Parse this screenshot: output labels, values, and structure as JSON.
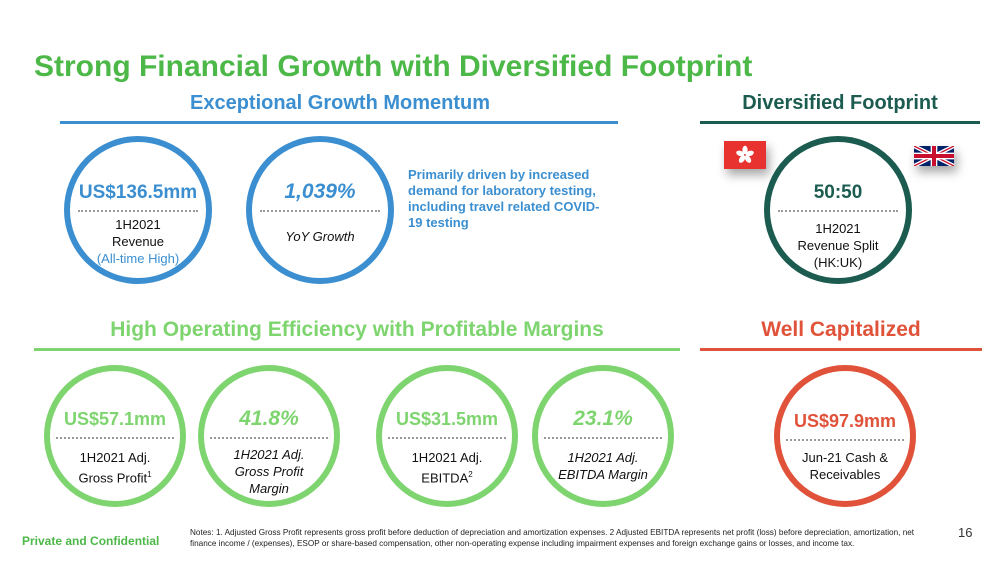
{
  "slide": {
    "title": "Strong Financial Growth with Diversified Footprint",
    "page_number": "16",
    "confidential": "Private and Confidential",
    "notes": "Notes: 1. Adjusted Gross Profit represents gross profit before deduction of depreciation and amortization expenses. 2 Adjusted EBITDA represents net profit (loss) before depreciation, amortization, net finance income / (expenses), ESOP or share-based compensation, other non-operating expense including impairment expenses and foreign exchange gains or losses, and income tax."
  },
  "colors": {
    "green": "#4cb848",
    "light_green": "#7ed56f",
    "blue": "#3b8fd0",
    "teal": "#1c5c50",
    "red": "#e0533a"
  },
  "growth": {
    "heading": "Exceptional Growth Momentum",
    "revenue": {
      "value": "US$136.5mm",
      "line1": "1H2021",
      "line2": "Revenue",
      "line3": "(All-time High)"
    },
    "yoy": {
      "value": "1,039%",
      "label": "YoY Growth"
    },
    "driver_text": "Primarily driven by increased demand for laboratory testing, including travel related COVID-19 testing"
  },
  "footprint": {
    "heading": "Diversified Footprint",
    "value": "50:50",
    "line1": "1H2021",
    "line2": "Revenue Split",
    "line3": "(HK:UK)",
    "flags": [
      "hong-kong-flag",
      "uk-flag"
    ]
  },
  "efficiency": {
    "heading": "High Operating Efficiency with Profitable Margins",
    "gross_profit": {
      "value": "US$57.1mm",
      "line1": "1H2021 Adj.",
      "line2": "Gross Profit",
      "sup": "1"
    },
    "gross_margin": {
      "value": "41.8%",
      "line1": "1H2021 Adj.",
      "line2": "Gross Profit",
      "line3": "Margin"
    },
    "ebitda": {
      "value": "US$31.5mm",
      "line1": "1H2021 Adj.",
      "line2": "EBITDA",
      "sup": "2"
    },
    "ebitda_margin": {
      "value": "23.1%",
      "line1": "1H2021 Adj.",
      "line2": "EBITDA Margin"
    }
  },
  "capital": {
    "heading": "Well Capitalized",
    "value": "US$97.9mm",
    "line1": "Jun-21 Cash &",
    "line2": "Receivables"
  }
}
